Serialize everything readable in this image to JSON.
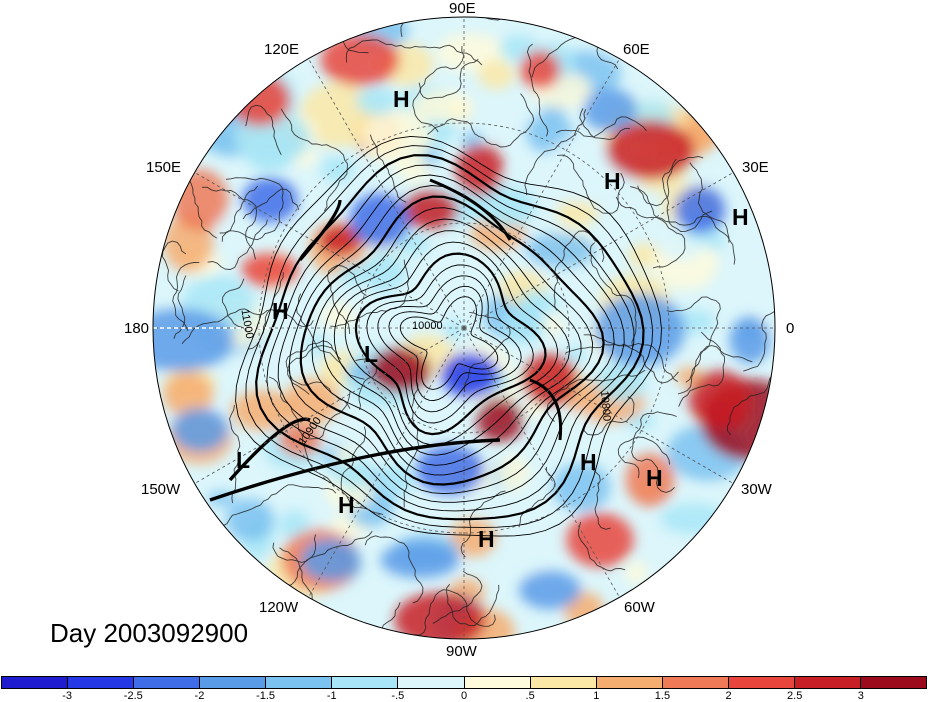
{
  "title": "Day 2003092900",
  "longitude_labels": {
    "top": "90E",
    "upper_left": "120E",
    "upper_right": "60E",
    "left_upper": "150E",
    "right_upper": "30E",
    "left": "180",
    "right": "0",
    "left_lower": "150W",
    "right_lower": "30W",
    "lower_left": "120W",
    "lower_right": "60W",
    "bottom": "90W"
  },
  "pressure_centers": {
    "h1": "H",
    "h2": "H",
    "h3": "H",
    "h4": "H",
    "h5": "H",
    "h6": "H",
    "h7": "H",
    "h8": "H",
    "l1": "L",
    "l2": "L"
  },
  "contour_labels": {
    "c1": "11000",
    "c2": "10000",
    "c3": "10900",
    "c4": "10800"
  },
  "colorbar": {
    "colors": [
      "#1f1ccf",
      "#2538e6",
      "#3f6de8",
      "#5a9be8",
      "#7cc2f0",
      "#a8e6f7",
      "#dcf6fb",
      "#fefadc",
      "#fce8a6",
      "#f6ad70",
      "#ee7a58",
      "#e8453c",
      "#c81e26",
      "#9c0b1c"
    ],
    "ticks": [
      "-3",
      "-2.5",
      "-2",
      "-1.5",
      "-1",
      "-.5",
      "0",
      ".5",
      "1",
      "1.5",
      "2",
      "2.5",
      "3"
    ]
  },
  "colors": {
    "land_line": "#222222",
    "contour": "#000000"
  }
}
